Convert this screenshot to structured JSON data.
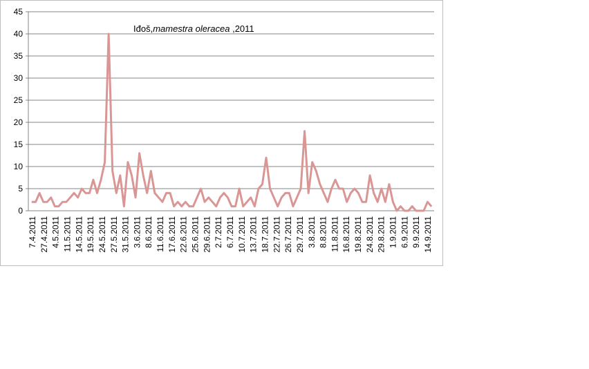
{
  "chart_data": {
    "type": "line",
    "title_plain": "Iđoš,",
    "title_italic": "mamestra oleracea",
    "title_tail": " ,2011",
    "ylim": [
      0,
      45
    ],
    "yticks": [
      "0",
      "5",
      "10",
      "15",
      "20",
      "25",
      "30",
      "35",
      "40",
      "45"
    ],
    "grid": true,
    "line_color": "#d99694",
    "xticks": [
      "7.4.2011",
      "27.4.2011",
      "4.5.2011",
      "11.5.2011",
      "14.5.2011",
      "19.5.2011",
      "24.5.2011",
      "27.5.2011",
      "31.5.2011",
      "3.6.2011",
      "8.6.2011",
      "11.6.2011",
      "17.6.2011",
      "22.6.2011",
      "25.6.2011",
      "29.6.2011",
      "2.7.2011",
      "6.7.2011",
      "10.7.2011",
      "13.7.2011",
      "18.7.2011",
      "22.7.2011",
      "26.7.2011",
      "29.7.2011",
      "3.8.2011",
      "8.8.2011",
      "11.8.2011",
      "16.8.2011",
      "19.8.2011",
      "24.8.2011",
      "29.8.2011",
      "1.9.2011",
      "6.9.2011",
      "9.9.2011",
      "14.9.2011"
    ],
    "values": [
      2,
      2,
      4,
      2,
      2,
      3,
      1,
      1,
      2,
      2,
      3,
      4,
      3,
      5,
      4,
      4,
      7,
      4,
      7,
      11,
      40,
      9,
      4,
      8,
      1,
      11,
      8,
      3,
      13,
      8,
      4,
      9,
      4,
      3,
      2,
      4,
      4,
      1,
      2,
      1,
      2,
      1,
      1,
      3,
      5,
      2,
      3,
      2,
      1,
      3,
      4,
      3,
      1,
      1,
      5,
      1,
      2,
      3,
      1,
      5,
      6,
      12,
      5,
      3,
      1,
      3,
      4,
      4,
      1,
      3,
      5,
      18,
      4,
      11,
      9,
      6,
      4,
      2,
      5,
      7,
      5,
      5,
      2,
      4,
      5,
      4,
      2,
      2,
      8,
      4,
      2,
      5,
      2,
      6,
      2,
      0,
      1,
      0,
      0,
      1,
      0,
      0,
      0,
      2,
      1
    ]
  }
}
